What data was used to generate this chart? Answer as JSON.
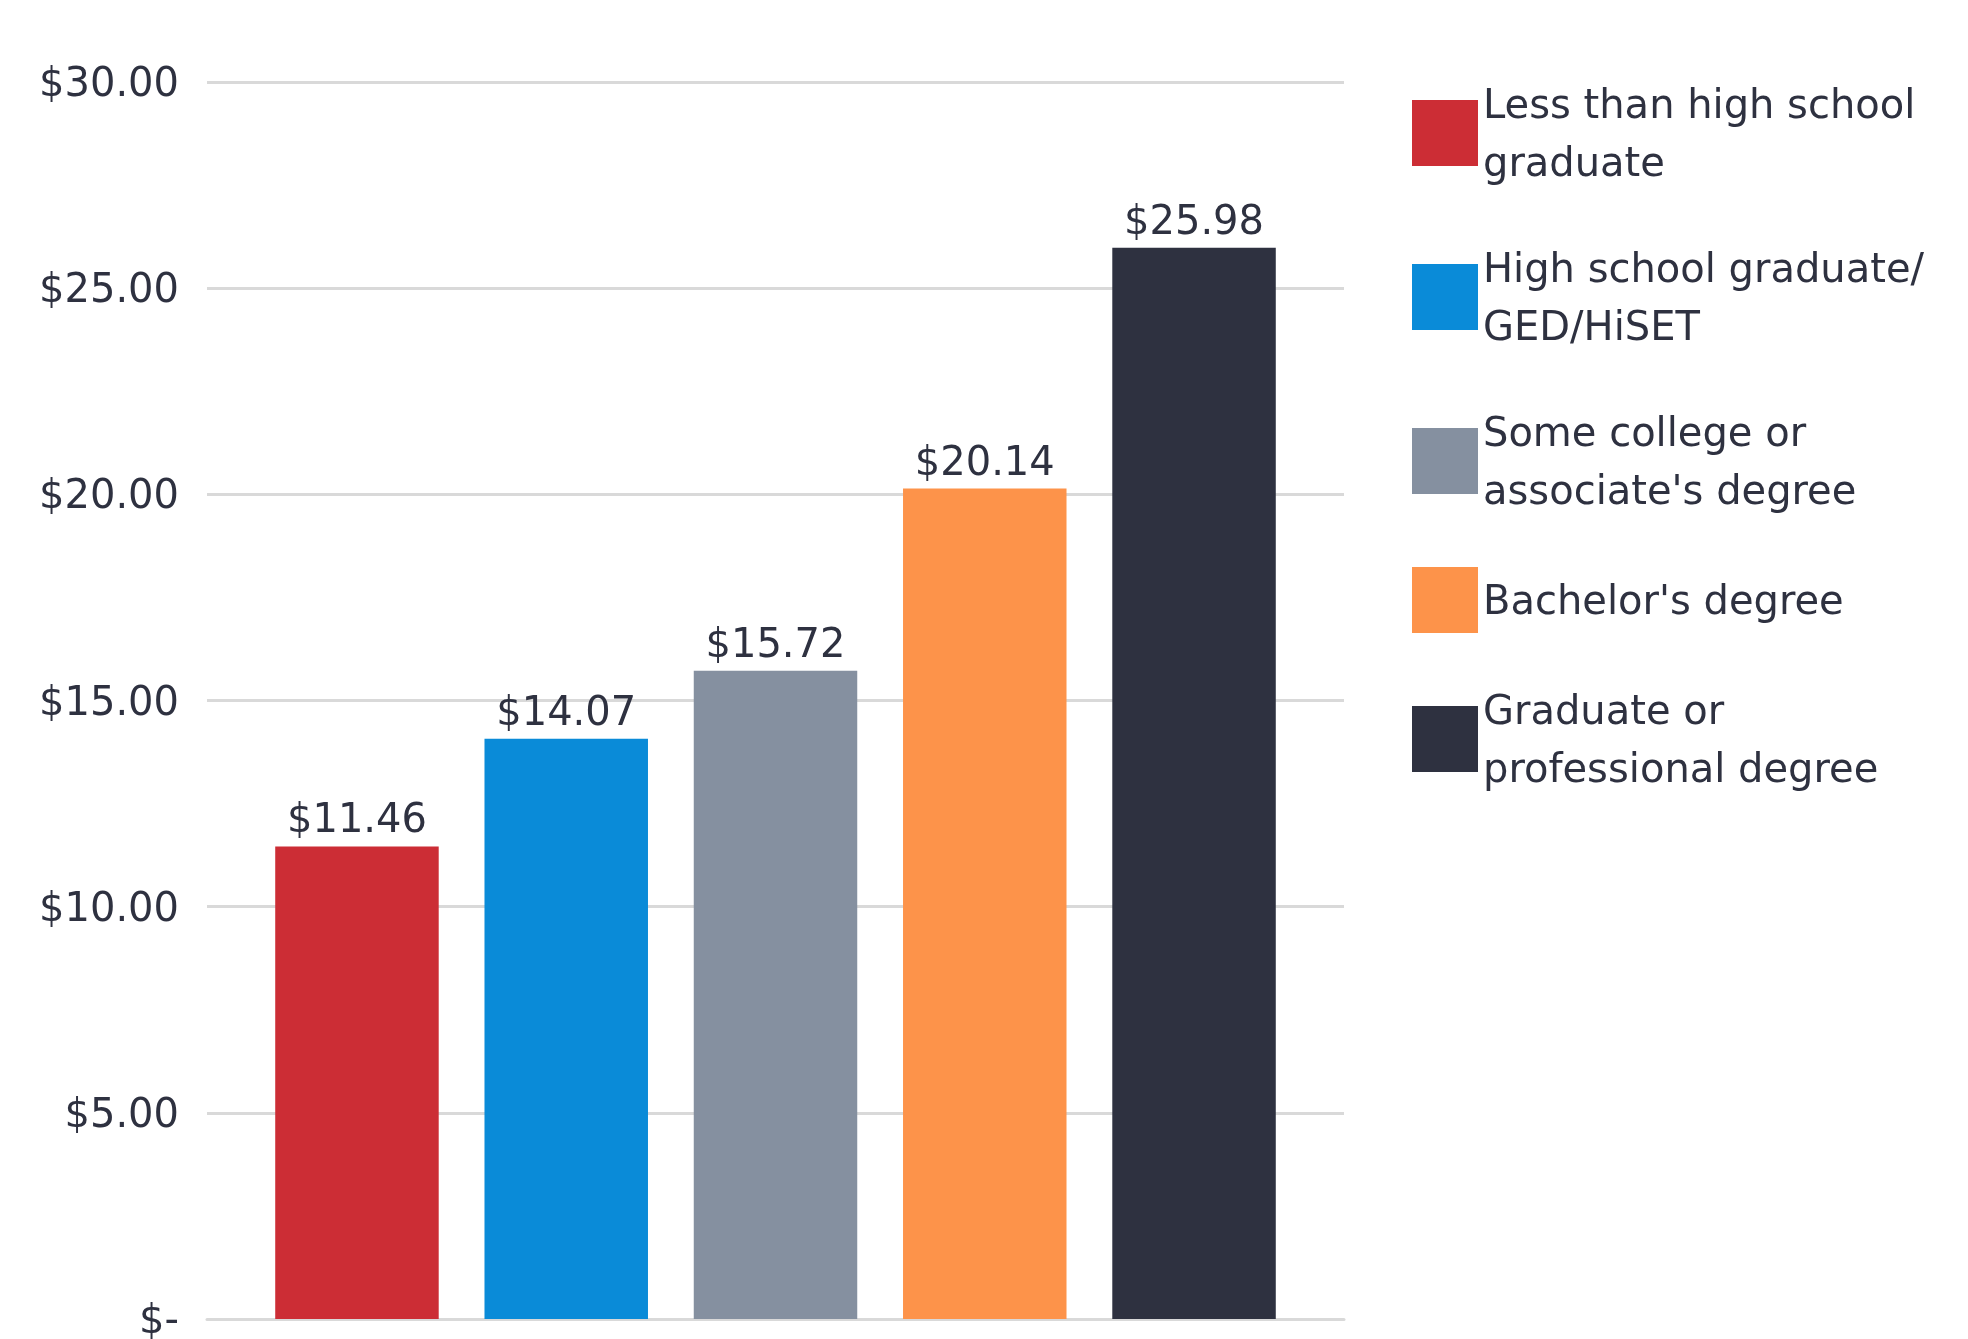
{
  "chart_data": {
    "type": "bar",
    "categories": [
      null
    ],
    "series": [
      {
        "name": "Less than high school graduate",
        "color": "#cc2d35",
        "values": [
          11.46
        ],
        "value_labels": [
          "$11.46"
        ]
      },
      {
        "name": "High school graduate/GED/HiSET",
        "color": "#0a8bd8",
        "values": [
          14.07
        ],
        "value_labels": [
          "$14.07"
        ]
      },
      {
        "name": "Some college or associate's degree",
        "color": "#8590a0",
        "values": [
          15.72
        ],
        "value_labels": [
          "$15.72"
        ]
      },
      {
        "name": "Bachelor's degree",
        "color": "#fd934a",
        "values": [
          20.14
        ],
        "value_labels": [
          "$20.14"
        ]
      },
      {
        "name": "Graduate or professional degree",
        "color": "#2e3140",
        "values": [
          25.98
        ],
        "value_labels": [
          "$25.98"
        ]
      }
    ],
    "ylim": [
      0,
      30
    ],
    "yticks": [
      {
        "value": 0,
        "label": "$-"
      },
      {
        "value": 5,
        "label": "$5.00"
      },
      {
        "value": 10,
        "label": "$10.00"
      },
      {
        "value": 15,
        "label": "$15.00"
      },
      {
        "value": 20,
        "label": "$20.00"
      },
      {
        "value": 25,
        "label": "$25.00"
      },
      {
        "value": 30,
        "label": "$30.00"
      }
    ],
    "grid": "y",
    "legend": "right"
  }
}
